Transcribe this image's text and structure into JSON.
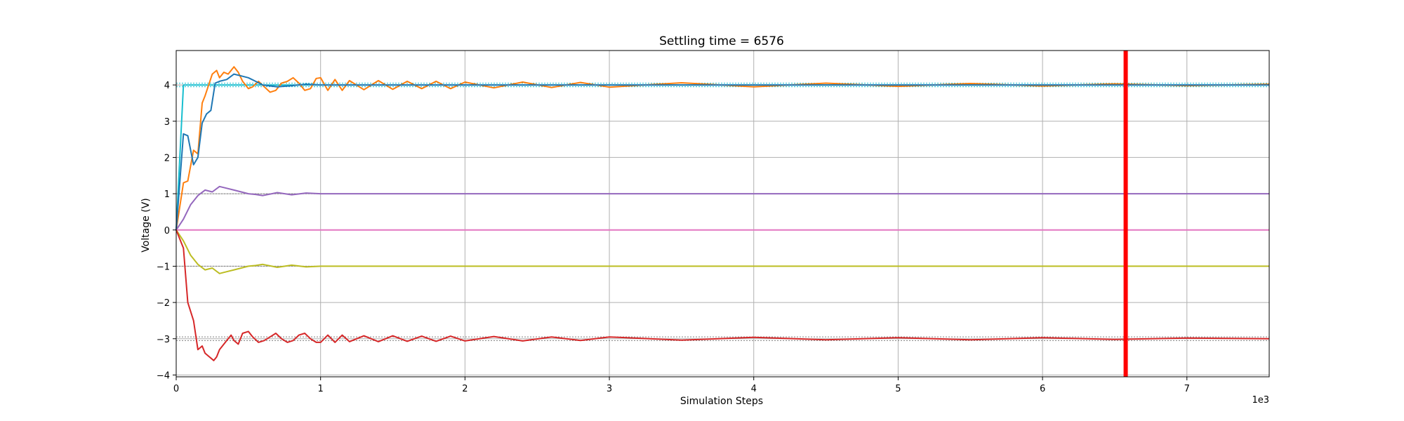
{
  "chart_data": {
    "type": "line",
    "title": "Settling time = 6576",
    "xlabel": "Simulation Steps",
    "ylabel": "Voltage (V)",
    "x_offset_label": "1e3",
    "xlim": [
      0,
      7.57
    ],
    "ylim": [
      -4.05,
      4.95
    ],
    "xticks": [
      0,
      1,
      2,
      3,
      4,
      5,
      6,
      7
    ],
    "xtick_labels": [
      "0",
      "1",
      "2",
      "3",
      "4",
      "5",
      "6",
      "7"
    ],
    "yticks": [
      -4,
      -3,
      -2,
      -1,
      0,
      1,
      2,
      3,
      4
    ],
    "ytick_labels": [
      "−4",
      "−3",
      "−2",
      "−1",
      "0",
      "1",
      "2",
      "3",
      "4"
    ],
    "grid": true,
    "settling_marker": {
      "x": 6.576,
      "color": "#ff0000"
    },
    "reference_lines": [
      {
        "y": 4.05,
        "color": "#17becf"
      },
      {
        "y": 3.95,
        "color": "#17becf"
      },
      {
        "y": 4.0,
        "color": "#808080"
      },
      {
        "y": 1.0,
        "color": "#808080"
      },
      {
        "y": -1.0,
        "color": "#808080"
      },
      {
        "y": -2.95,
        "color": "#808080"
      },
      {
        "y": -3.05,
        "color": "#808080"
      }
    ],
    "series": [
      {
        "color": "#17becf",
        "x": [
          0,
          0.05,
          7.57
        ],
        "y": [
          0,
          4.0,
          4.0
        ]
      },
      {
        "color": "#ff7f0e",
        "x": [
          0,
          0.05,
          0.08,
          0.12,
          0.15,
          0.18,
          0.2,
          0.25,
          0.28,
          0.3,
          0.33,
          0.36,
          0.4,
          0.43,
          0.46,
          0.5,
          0.53,
          0.57,
          0.61,
          0.65,
          0.69,
          0.73,
          0.77,
          0.81,
          0.85,
          0.89,
          0.93,
          0.97,
          1.0,
          1.05,
          1.1,
          1.15,
          1.2,
          1.3,
          1.4,
          1.5,
          1.6,
          1.7,
          1.8,
          1.9,
          2.0,
          2.2,
          2.4,
          2.6,
          2.8,
          3.0,
          3.5,
          4.0,
          4.5,
          5.0,
          5.5,
          6.0,
          6.5,
          7.0,
          7.57
        ],
        "y": [
          0,
          1.3,
          1.35,
          2.2,
          2.1,
          3.5,
          3.7,
          4.3,
          4.4,
          4.2,
          4.35,
          4.3,
          4.5,
          4.35,
          4.1,
          3.9,
          3.95,
          4.1,
          3.95,
          3.8,
          3.85,
          4.05,
          4.1,
          4.2,
          4.05,
          3.85,
          3.9,
          4.18,
          4.2,
          3.85,
          4.15,
          3.85,
          4.12,
          3.87,
          4.12,
          3.88,
          4.1,
          3.9,
          4.1,
          3.9,
          4.08,
          3.92,
          4.08,
          3.93,
          4.07,
          3.94,
          4.06,
          3.95,
          4.05,
          3.96,
          4.04,
          3.97,
          4.03,
          3.98,
          4.02
        ]
      },
      {
        "color": "#1f77b4",
        "x": [
          0,
          0.05,
          0.08,
          0.12,
          0.15,
          0.18,
          0.21,
          0.24,
          0.27,
          0.3,
          0.35,
          0.4,
          0.45,
          0.5,
          0.55,
          0.6,
          0.7,
          0.8,
          0.9,
          1.0,
          1.5,
          2.0,
          3.0,
          4.0,
          5.0,
          6.0,
          7.0,
          7.57
        ],
        "y": [
          0,
          2.65,
          2.6,
          1.8,
          2.0,
          2.95,
          3.2,
          3.3,
          4.05,
          4.1,
          4.15,
          4.3,
          4.25,
          4.2,
          4.1,
          4.0,
          3.95,
          3.98,
          4.02,
          4.0,
          4.0,
          4.0,
          4.0,
          4.0,
          4.0,
          4.0,
          4.0,
          4.0
        ]
      },
      {
        "color": "#9467bd",
        "x": [
          0,
          0.05,
          0.1,
          0.15,
          0.2,
          0.25,
          0.3,
          0.35,
          0.4,
          0.45,
          0.5,
          0.55,
          0.6,
          0.7,
          0.8,
          0.9,
          1.0,
          1.5,
          2.0,
          3.0,
          4.0,
          5.0,
          6.0,
          7.0,
          7.57
        ],
        "y": [
          0,
          0.3,
          0.7,
          0.95,
          1.1,
          1.05,
          1.2,
          1.15,
          1.1,
          1.05,
          1.0,
          0.98,
          0.95,
          1.03,
          0.97,
          1.02,
          1.0,
          1.0,
          1.0,
          1.0,
          1.0,
          1.0,
          1.0,
          1.0,
          1.0
        ]
      },
      {
        "color": "#e377c2",
        "x": [
          0,
          7.57
        ],
        "y": [
          0,
          0
        ]
      },
      {
        "color": "#bcbd22",
        "x": [
          0,
          0.05,
          0.1,
          0.15,
          0.2,
          0.25,
          0.3,
          0.35,
          0.4,
          0.45,
          0.5,
          0.55,
          0.6,
          0.7,
          0.8,
          0.9,
          1.0,
          1.5,
          2.0,
          3.0,
          4.0,
          5.0,
          6.0,
          7.0,
          7.57
        ],
        "y": [
          0,
          -0.3,
          -0.7,
          -0.95,
          -1.1,
          -1.05,
          -1.2,
          -1.15,
          -1.1,
          -1.05,
          -1.0,
          -0.98,
          -0.95,
          -1.03,
          -0.97,
          -1.02,
          -1.0,
          -1.0,
          -1.0,
          -1.0,
          -1.0,
          -1.0,
          -1.0,
          -1.0,
          -1.0
        ]
      },
      {
        "color": "#d62728",
        "x": [
          0,
          0.05,
          0.08,
          0.12,
          0.15,
          0.18,
          0.2,
          0.23,
          0.26,
          0.28,
          0.3,
          0.32,
          0.35,
          0.38,
          0.4,
          0.43,
          0.46,
          0.5,
          0.53,
          0.57,
          0.61,
          0.65,
          0.69,
          0.73,
          0.77,
          0.81,
          0.85,
          0.89,
          0.93,
          0.97,
          1.0,
          1.05,
          1.1,
          1.15,
          1.2,
          1.3,
          1.4,
          1.5,
          1.6,
          1.7,
          1.8,
          1.9,
          2.0,
          2.2,
          2.4,
          2.6,
          2.8,
          3.0,
          3.5,
          4.0,
          4.5,
          5.0,
          5.5,
          6.0,
          6.5,
          7.0,
          7.57
        ],
        "y": [
          0,
          -0.5,
          -2.0,
          -2.5,
          -3.3,
          -3.2,
          -3.4,
          -3.5,
          -3.6,
          -3.5,
          -3.3,
          -3.2,
          -3.05,
          -2.9,
          -3.05,
          -3.15,
          -2.85,
          -2.8,
          -2.95,
          -3.1,
          -3.05,
          -2.95,
          -2.85,
          -3.0,
          -3.1,
          -3.05,
          -2.9,
          -2.85,
          -3.0,
          -3.1,
          -3.1,
          -2.9,
          -3.1,
          -2.9,
          -3.08,
          -2.92,
          -3.08,
          -2.92,
          -3.07,
          -2.93,
          -3.07,
          -2.93,
          -3.06,
          -2.94,
          -3.06,
          -2.95,
          -3.05,
          -2.95,
          -3.04,
          -2.96,
          -3.03,
          -2.97,
          -3.03,
          -2.97,
          -3.02,
          -2.98,
          -3.0
        ]
      }
    ]
  }
}
